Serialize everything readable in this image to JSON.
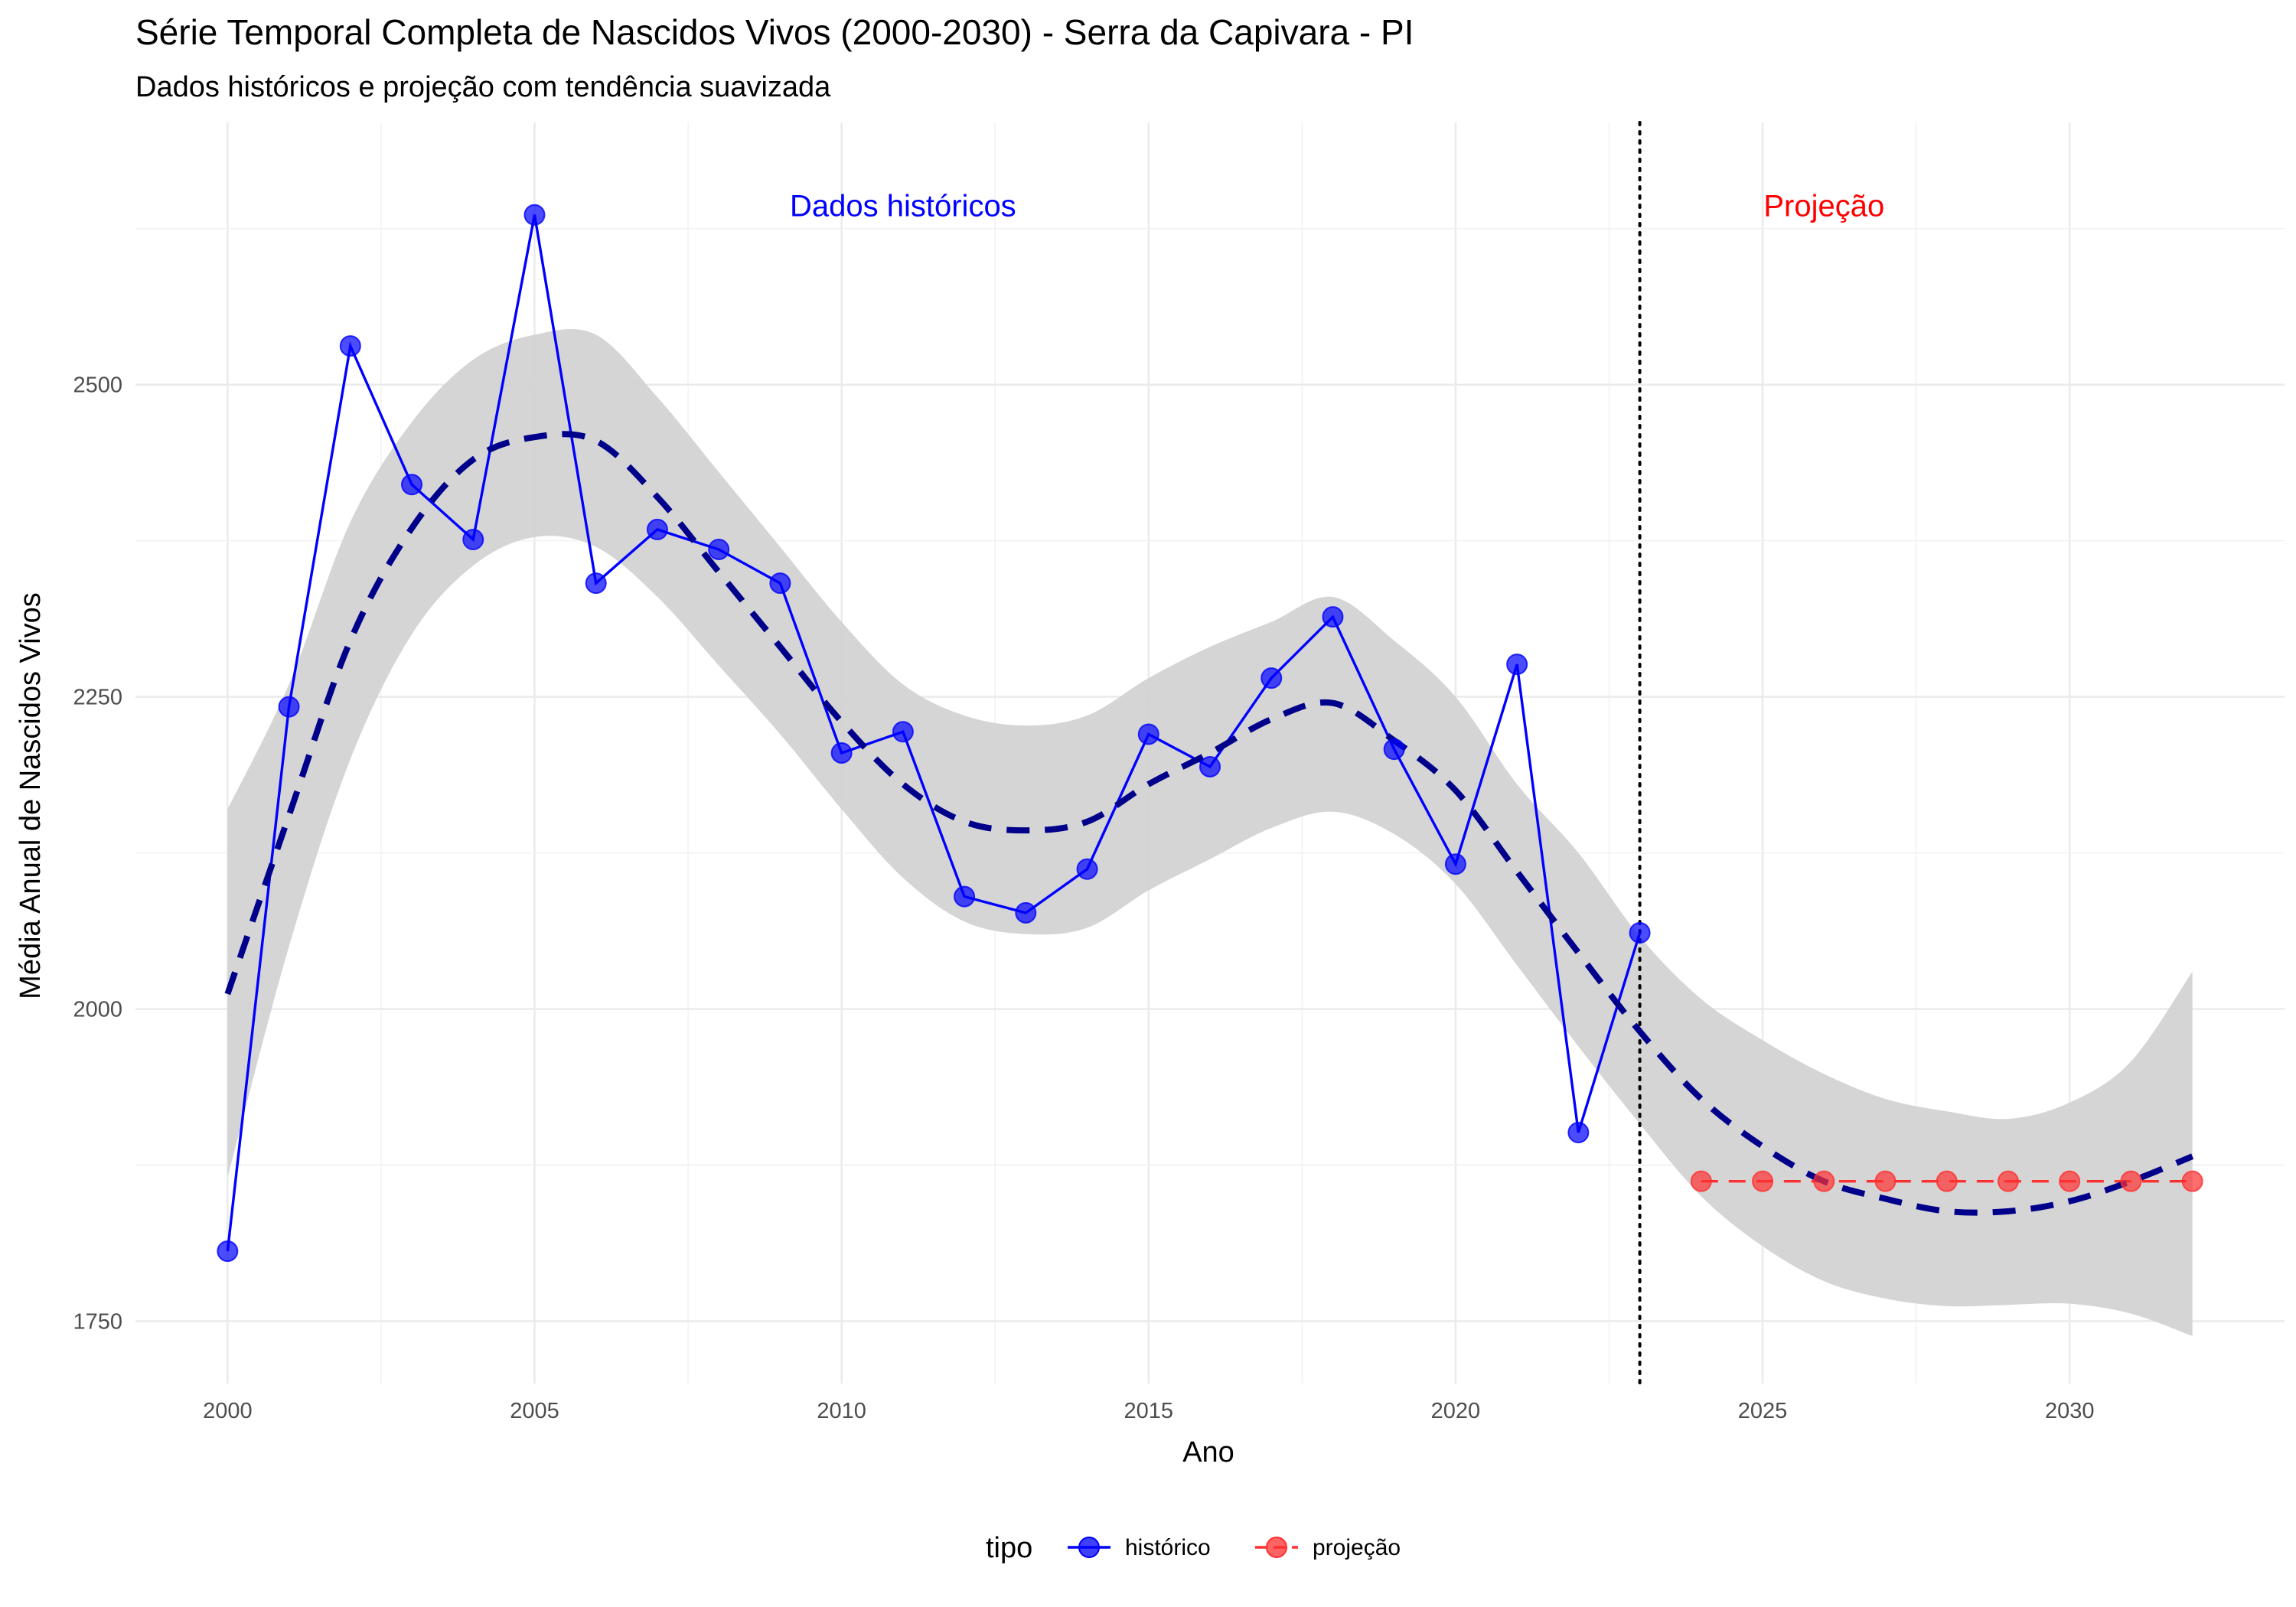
{
  "chart_data": {
    "type": "line",
    "title": "Série Temporal Completa de Nascidos Vivos (2000-2030) -  Serra da Capivara - PI",
    "subtitle": "Dados históricos e projeção com tendência suavizada",
    "xlabel": "Ano",
    "ylabel": "Média Anual de Nascidos Vivos",
    "xlim": [
      1998.5,
      2033.5
    ],
    "ylim": [
      1700,
      2710
    ],
    "x_ticks": [
      2000,
      2005,
      2010,
      2015,
      2020,
      2025,
      2030
    ],
    "y_ticks": [
      1750,
      2000,
      2250,
      2500
    ],
    "grid": true,
    "divider_x": 2023,
    "annotations": [
      {
        "text": "Dados históricos",
        "x": 2011,
        "y": 2635,
        "color": "#0000ff"
      },
      {
        "text": "Projeção",
        "x": 2026,
        "y": 2635,
        "color": "#ff0000"
      }
    ],
    "legend": {
      "title": "tipo",
      "position": "bottom",
      "items": [
        {
          "label": "histórico",
          "color": "#0000ff"
        },
        {
          "label": "projeção",
          "color": "#ff3030"
        }
      ]
    },
    "series": [
      {
        "name": "histórico",
        "color": "#0000ff",
        "x": [
          2000,
          2001,
          2002,
          2003,
          2004,
          2005,
          2006,
          2007,
          2008,
          2009,
          2010,
          2011,
          2012,
          2013,
          2014,
          2015,
          2016,
          2017,
          2018,
          2019,
          2020,
          2021,
          2022,
          2023
        ],
        "y": [
          1806,
          2242,
          2531,
          2420,
          2376,
          2636,
          2341,
          2384,
          2368,
          2341,
          2205,
          2222,
          2090,
          2077,
          2112,
          2220,
          2194,
          2265,
          2314,
          2208,
          2116,
          2276,
          1901,
          2061
        ]
      },
      {
        "name": "projeção",
        "color": "#ff3030",
        "x": [
          2024,
          2025,
          2026,
          2027,
          2028,
          2029,
          2030,
          2031,
          2032
        ],
        "y": [
          1862,
          1862,
          1862,
          1862,
          1862,
          1862,
          1862,
          1862,
          1862
        ]
      }
    ],
    "trend": {
      "color": "#00008b",
      "band_color": "#d3d3d3",
      "x": [
        2000,
        2001,
        2002,
        2003,
        2004,
        2005,
        2006,
        2007,
        2008,
        2009,
        2010,
        2011,
        2012,
        2013,
        2014,
        2015,
        2016,
        2017,
        2018,
        2019,
        2020,
        2021,
        2022,
        2023,
        2024,
        2025,
        2026,
        2027,
        2028,
        2029,
        2030,
        2031,
        2032
      ],
      "y": [
        2012,
        2155,
        2295,
        2385,
        2440,
        2458,
        2455,
        2410,
        2350,
        2290,
        2230,
        2180,
        2150,
        2143,
        2150,
        2180,
        2205,
        2232,
        2245,
        2215,
        2175,
        2110,
        2045,
        1982,
        1928,
        1890,
        1862,
        1848,
        1838,
        1838,
        1846,
        1862,
        1882
      ],
      "lower": [
        1865,
        2050,
        2200,
        2300,
        2355,
        2378,
        2370,
        2330,
        2275,
        2220,
        2160,
        2105,
        2070,
        2060,
        2065,
        2095,
        2120,
        2145,
        2158,
        2140,
        2100,
        2035,
        1970,
        1908,
        1850,
        1810,
        1782,
        1768,
        1762,
        1763,
        1764,
        1756,
        1738
      ],
      "upper": [
        2160,
        2260,
        2390,
        2470,
        2520,
        2540,
        2540,
        2490,
        2430,
        2370,
        2310,
        2260,
        2235,
        2227,
        2235,
        2265,
        2290,
        2310,
        2330,
        2295,
        2250,
        2180,
        2125,
        2058,
        2008,
        1975,
        1948,
        1928,
        1918,
        1912,
        1925,
        1958,
        2030
      ]
    }
  }
}
